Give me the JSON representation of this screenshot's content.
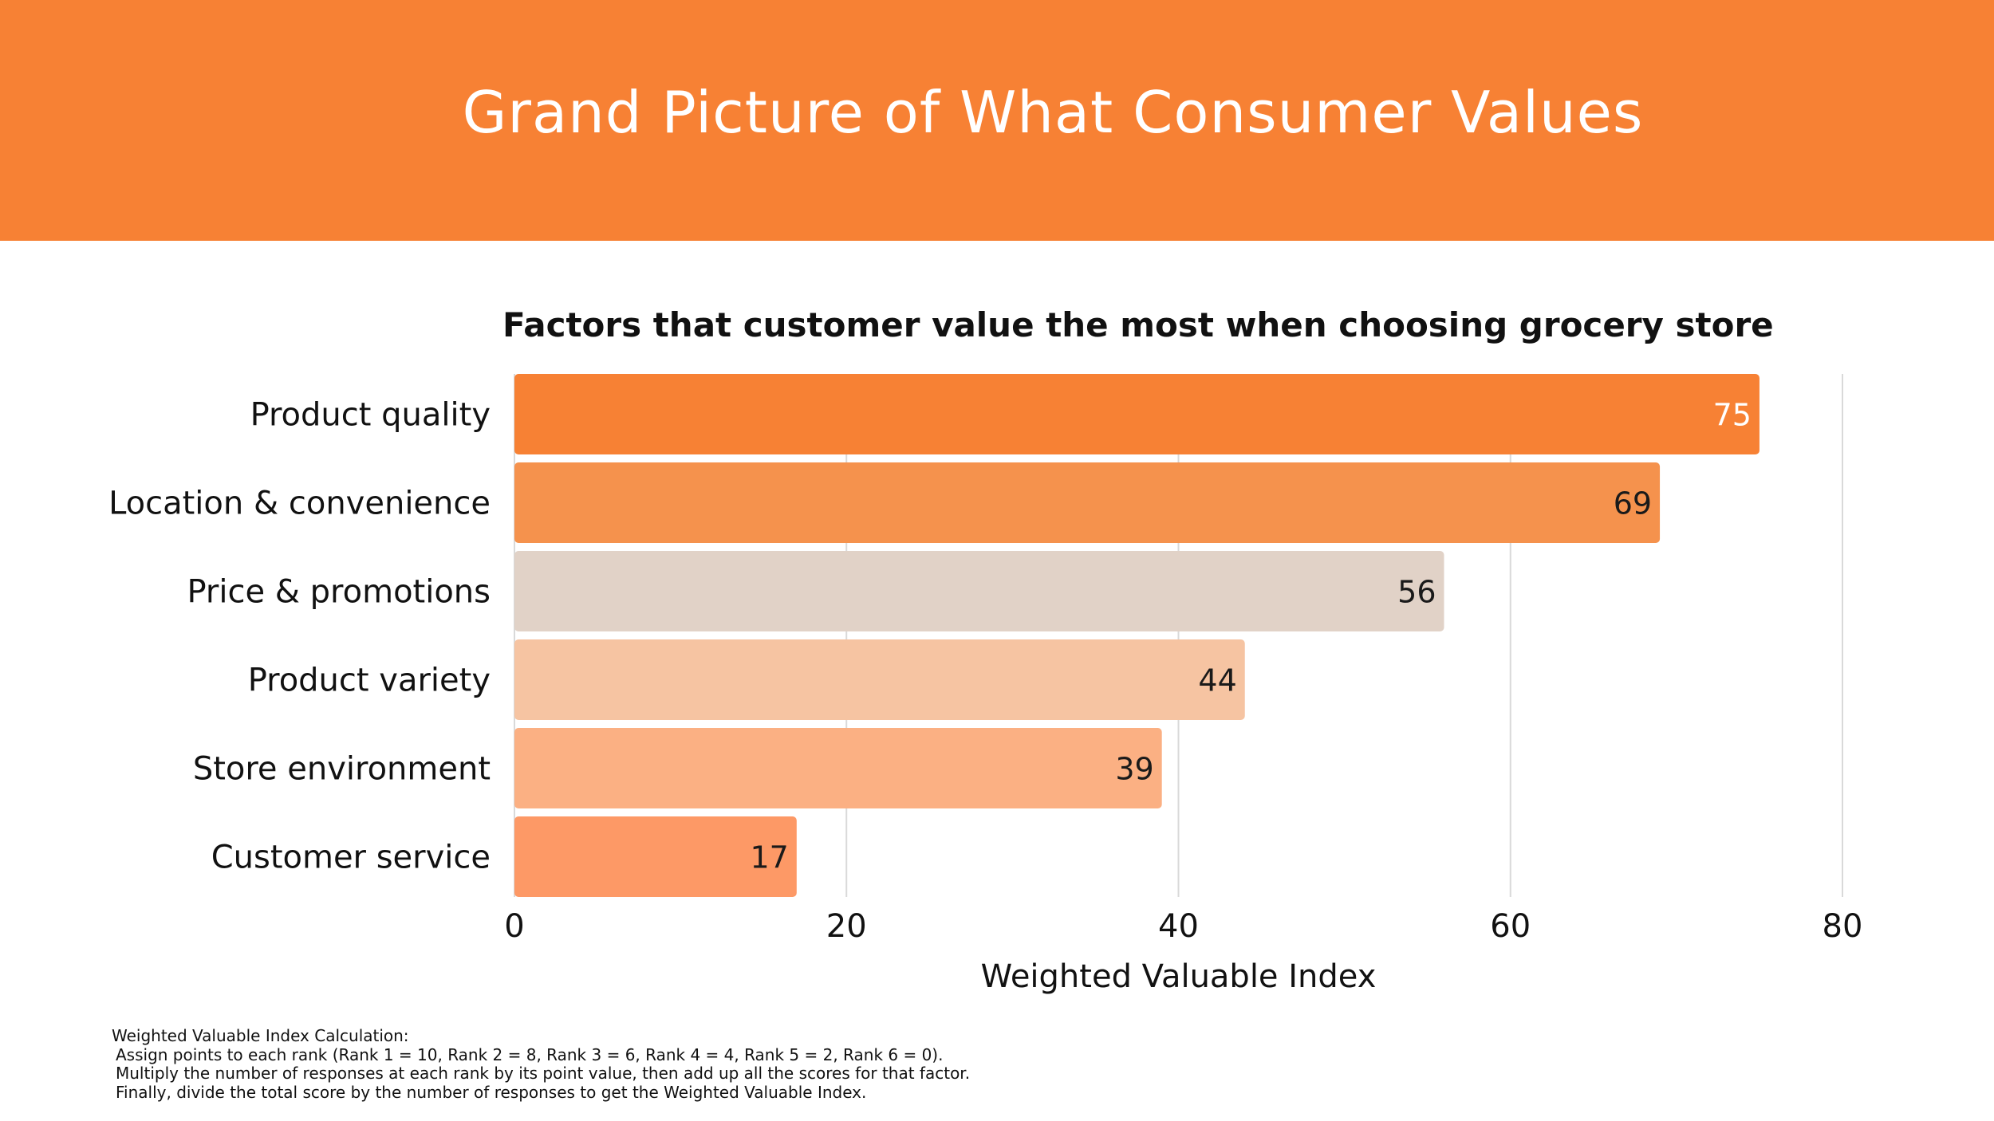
{
  "header": {
    "title": "Grand Picture of What Consumer Values",
    "background_color": "#f78134",
    "text_color": "#ffffff"
  },
  "chart_data": {
    "type": "bar",
    "orientation": "horizontal",
    "title": "Factors that customer value the most when choosing grocery store",
    "categories": [
      "Product quality",
      "Location & convenience",
      "Price & promotions",
      "Product variety",
      "Store environment",
      "Customer service"
    ],
    "values": [
      75,
      69,
      56,
      44,
      39,
      17
    ],
    "bar_colors": [
      "#f78134",
      "#f5924d",
      "#e1d2c7",
      "#f6c4a2",
      "#fbb083",
      "#fd9966"
    ],
    "value_label_colors": [
      "#ffffff",
      "#1a1a1a",
      "#1a1a1a",
      "#1a1a1a",
      "#1a1a1a",
      "#1a1a1a"
    ],
    "xlabel": "Weighted Valuable Index",
    "ylabel": "",
    "xlim": [
      0,
      80
    ],
    "xticks": [
      0,
      20,
      40,
      60,
      80
    ],
    "grid": "vertical",
    "grid_color": "#d9d9d9",
    "legend": "none"
  },
  "footnote": {
    "heading": "Weighted Valuable Index Calculation:",
    "lines": [
      "Assign points to each rank (Rank 1 = 10, Rank 2 = 8, Rank 3 = 6, Rank 4 = 4, Rank 5 = 2, Rank 6 = 0).",
      "Multiply the number of responses at each rank by its point value, then add up all the scores for that factor.",
      "Finally, divide the total score by the number of responses to get the Weighted Valuable Index."
    ]
  }
}
